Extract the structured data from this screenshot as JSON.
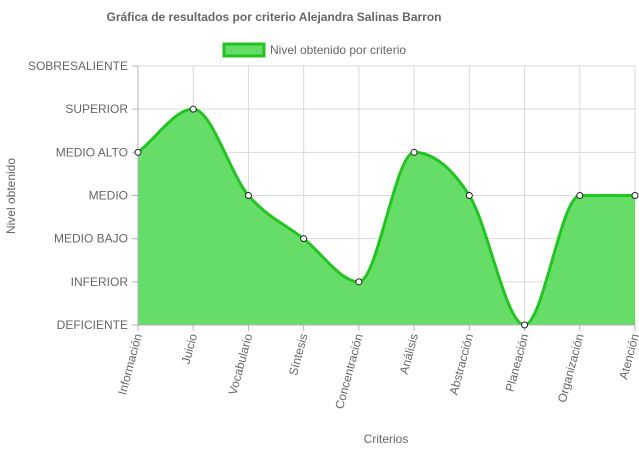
{
  "chart_data": {
    "type": "area",
    "title": "Gráfica de resultados por criterio Alejandra Salinas Barron",
    "xlabel": "Criterios",
    "ylabel": "Nivel obtenido",
    "y_levels": [
      "DEFICIENTE",
      "INFERIOR",
      "MEDIO BAJO",
      "MEDIO",
      "MEDIO ALTO",
      "SUPERIOR",
      "SOBRESALIENTE"
    ],
    "ylim": [
      0,
      6
    ],
    "categories": [
      "Información",
      "Juicio",
      "Vocabulario",
      "Síntesis",
      "Concentración",
      "Análisis",
      "Abstracción",
      "Planeación",
      "Organización",
      "Atención"
    ],
    "series": [
      {
        "name": "Nivel obtenido por criterio",
        "values": [
          4,
          5,
          3,
          2,
          1,
          4,
          3,
          0,
          3,
          3
        ],
        "color": "#22c422",
        "fill": "#66dd66"
      }
    ],
    "legend_position": "top",
    "grid": true
  }
}
